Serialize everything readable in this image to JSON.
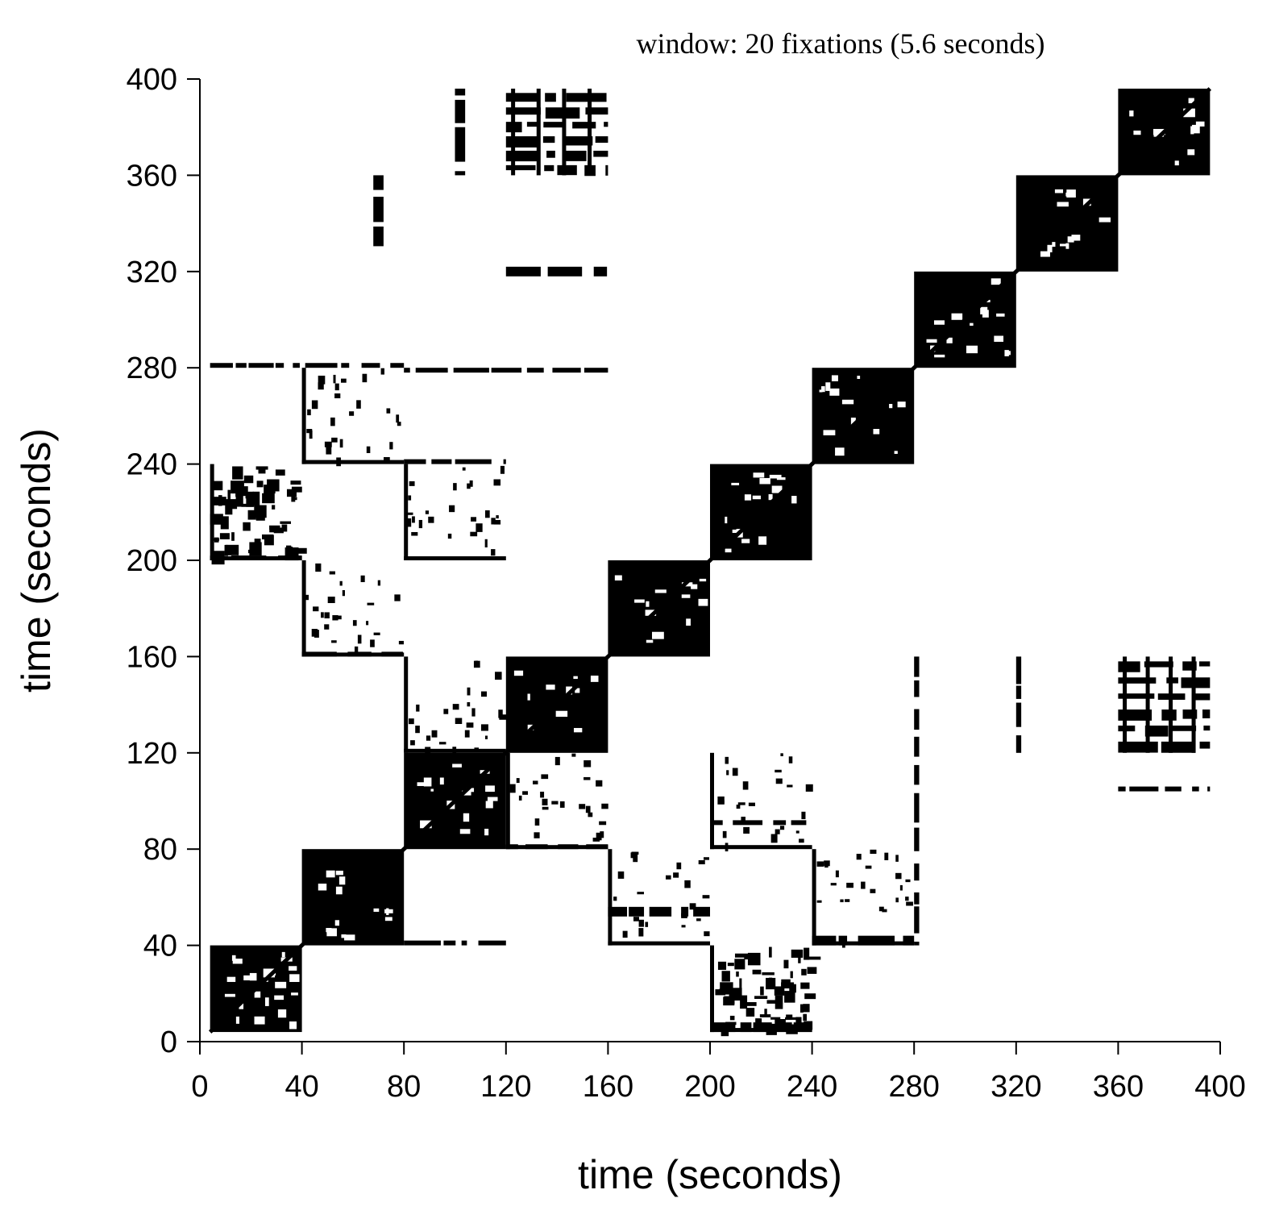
{
  "chart_data": {
    "type": "heatmap",
    "subtype": "recurrence-plot",
    "title": "window: 20 fixations (5.6 seconds)",
    "xlabel": "time (seconds)",
    "ylabel": "time (seconds)",
    "xlim": [
      0,
      400
    ],
    "ylim": [
      0,
      400
    ],
    "xticks": [
      0,
      40,
      80,
      120,
      160,
      200,
      240,
      280,
      320,
      360,
      400
    ],
    "yticks": [
      0,
      40,
      80,
      120,
      160,
      200,
      240,
      280,
      320,
      360,
      400
    ],
    "xtick_labels": [
      "0",
      "40",
      "80",
      "120",
      "160",
      "200",
      "240",
      "280",
      "320",
      "360",
      "400"
    ],
    "ytick_labels": [
      "0",
      "40",
      "80",
      "120",
      "160",
      "200",
      "240",
      "280",
      "320",
      "360",
      "400"
    ],
    "grid": false,
    "colors": {
      "recurrence": "#000000",
      "background": "#ffffff"
    },
    "diagonal_blocks": [
      {
        "t_start": 4,
        "t_end": 40
      },
      {
        "t_start": 40,
        "t_end": 80
      },
      {
        "t_start": 80,
        "t_end": 120
      },
      {
        "t_start": 120,
        "t_end": 160
      },
      {
        "t_start": 160,
        "t_end": 200
      },
      {
        "t_start": 200,
        "t_end": 240
      },
      {
        "t_start": 240,
        "t_end": 280
      },
      {
        "t_start": 280,
        "t_end": 320
      },
      {
        "t_start": 320,
        "t_end": 360
      },
      {
        "t_start": 360,
        "t_end": 396
      }
    ],
    "off_diagonal_blocks": [
      {
        "x": [
          80,
          120
        ],
        "y": [
          120,
          160
        ],
        "density": "sparse"
      },
      {
        "x": [
          120,
          160
        ],
        "y": [
          80,
          120
        ],
        "density": "sparse"
      },
      {
        "x": [
          120,
          160
        ],
        "y": [
          360,
          396
        ],
        "density": "dense"
      },
      {
        "x": [
          360,
          396
        ],
        "y": [
          120,
          160
        ],
        "density": "dense"
      },
      {
        "x": [
          4,
          40
        ],
        "y": [
          200,
          240
        ],
        "density": "medium"
      },
      {
        "x": [
          200,
          240
        ],
        "y": [
          4,
          40
        ],
        "density": "medium"
      },
      {
        "x": [
          40,
          80
        ],
        "y": [
          160,
          200
        ],
        "density": "sparse"
      },
      {
        "x": [
          160,
          200
        ],
        "y": [
          40,
          80
        ],
        "density": "sparse"
      },
      {
        "x": [
          80,
          120
        ],
        "y": [
          200,
          240
        ],
        "density": "sparse"
      },
      {
        "x": [
          200,
          240
        ],
        "y": [
          80,
          120
        ],
        "density": "sparse"
      },
      {
        "x": [
          40,
          80
        ],
        "y": [
          240,
          280
        ],
        "density": "sparse"
      },
      {
        "x": [
          240,
          280
        ],
        "y": [
          40,
          80
        ],
        "density": "sparse"
      },
      {
        "x": [
          4,
          80
        ],
        "y": [
          280,
          282
        ],
        "density": "line"
      },
      {
        "x": [
          80,
          160
        ],
        "y": [
          278,
          280
        ],
        "density": "line"
      },
      {
        "x": [
          120,
          160
        ],
        "y": [
          318,
          322
        ],
        "density": "line"
      },
      {
        "x": [
          240,
          280
        ],
        "y": [
          40,
          44
        ],
        "density": "line"
      },
      {
        "x": [
          200,
          240
        ],
        "y": [
          90,
          92
        ],
        "density": "line"
      },
      {
        "x": [
          280,
          282
        ],
        "y": [
          40,
          160
        ],
        "density": "line"
      },
      {
        "x": [
          320,
          322
        ],
        "y": [
          120,
          160
        ],
        "density": "line"
      },
      {
        "x": [
          80,
          120
        ],
        "y": [
          40,
          42
        ],
        "density": "line"
      },
      {
        "x": [
          120,
          160
        ],
        "y": [
          80,
          82
        ],
        "density": "line"
      },
      {
        "x": [
          160,
          200
        ],
        "y": [
          52,
          56
        ],
        "density": "line"
      },
      {
        "x": [
          200,
          240
        ],
        "y": [
          4,
          8
        ],
        "density": "line"
      },
      {
        "x": [
          360,
          396
        ],
        "y": [
          104,
          106
        ],
        "density": "line"
      },
      {
        "x": [
          100,
          104
        ],
        "y": [
          360,
          396
        ],
        "density": "line"
      },
      {
        "x": [
          68,
          72
        ],
        "y": [
          330,
          360
        ],
        "density": "line"
      },
      {
        "x": [
          40,
          80
        ],
        "y": [
          160,
          162
        ],
        "density": "line"
      },
      {
        "x": [
          80,
          120
        ],
        "y": [
          240,
          242
        ],
        "density": "line"
      },
      {
        "x": [
          4,
          40
        ],
        "y": [
          200,
          202
        ],
        "density": "line"
      }
    ]
  }
}
